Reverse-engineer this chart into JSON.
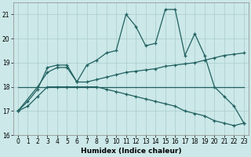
{
  "xlabel": "Humidex (Indice chaleur)",
  "background_color": "#cce8e8",
  "grid_color": "#aacccc",
  "line_color": "#206060",
  "xlim": [
    -0.5,
    23.5
  ],
  "ylim": [
    16,
    21.5
  ],
  "yticks": [
    16,
    17,
    18,
    19,
    20,
    21
  ],
  "xticks": [
    0,
    1,
    2,
    3,
    4,
    5,
    6,
    7,
    8,
    9,
    10,
    11,
    12,
    13,
    14,
    15,
    16,
    17,
    18,
    19,
    20,
    21,
    22,
    23
  ],
  "curve_spiky": {
    "x": [
      0,
      1,
      2,
      3,
      4,
      5,
      6,
      7,
      8,
      9,
      10,
      11,
      12,
      13,
      14,
      15,
      16,
      17,
      18,
      19,
      20,
      21,
      22,
      23
    ],
    "y": [
      17.0,
      17.4,
      17.9,
      18.8,
      18.9,
      18.9,
      18.2,
      18.9,
      19.1,
      19.4,
      19.5,
      21.0,
      20.5,
      19.7,
      19.8,
      21.2,
      21.2,
      19.3,
      20.2,
      19.3,
      18.0,
      17.6,
      17.2,
      16.5
    ]
  },
  "curve_rising": {
    "x": [
      0,
      2,
      3,
      4,
      5,
      6,
      7,
      8,
      9,
      10,
      11,
      12,
      13,
      14,
      15,
      16,
      17,
      18,
      19,
      20,
      21,
      22,
      23
    ],
    "y": [
      17.0,
      18.0,
      18.6,
      18.8,
      18.8,
      18.2,
      18.2,
      18.3,
      18.4,
      18.5,
      18.6,
      18.65,
      18.7,
      18.75,
      18.85,
      18.9,
      18.95,
      19.0,
      19.1,
      19.2,
      19.3,
      19.35,
      19.4
    ]
  },
  "curve_flat": {
    "x": [
      0,
      23
    ],
    "y": [
      18.0,
      18.0
    ]
  },
  "curve_descending": {
    "x": [
      0,
      1,
      2,
      3,
      4,
      5,
      6,
      7,
      8,
      9,
      10,
      11,
      12,
      13,
      14,
      15,
      16,
      17,
      18,
      19,
      20,
      21,
      22,
      23
    ],
    "y": [
      17.0,
      17.2,
      17.6,
      18.0,
      18.0,
      18.0,
      18.0,
      18.0,
      18.0,
      17.9,
      17.8,
      17.7,
      17.6,
      17.5,
      17.4,
      17.3,
      17.2,
      17.0,
      16.9,
      16.8,
      16.6,
      16.5,
      16.4,
      16.5
    ]
  }
}
